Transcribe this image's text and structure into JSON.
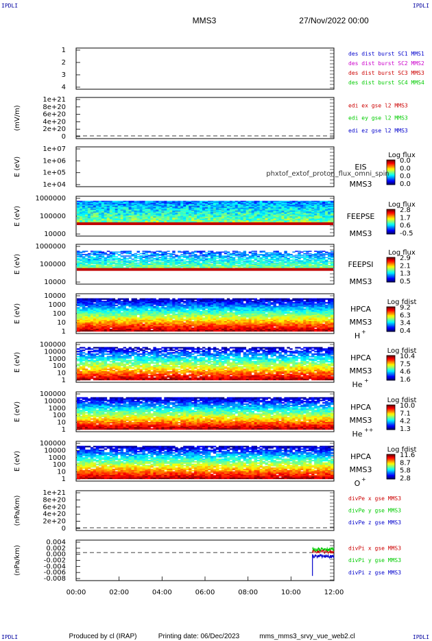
{
  "header": {
    "corner_label": "IPDLI",
    "spacecraft": "MMS3",
    "datetime": "27/Nov/2022 00:00"
  },
  "footer": {
    "produced_by": "Produced by cl (IRAP)",
    "printing_date": "Printing date: 06/Dec/2023",
    "script": "mms_mms3_srvy_vue_web2.cl"
  },
  "x_axis": {
    "ticks": [
      "00:00",
      "02:00",
      "04:00",
      "06:00",
      "08:00",
      "10:00",
      "12:00"
    ],
    "range_hours": [
      0,
      12
    ]
  },
  "colors": {
    "red": "#cc0000",
    "green": "#00cc00",
    "blue": "#0000cc",
    "magenta": "#cc00cc",
    "orange": "#cc6600",
    "dash": "#000000"
  },
  "chart_data": [
    {
      "type": "line",
      "panel": "burst",
      "yticks": [
        "1",
        "2",
        "3",
        "4"
      ],
      "ylim": [
        0.5,
        4.5
      ],
      "legend": [
        {
          "text": "des dist burst SC1 MMS1",
          "color": "#0000cc"
        },
        {
          "text": "des dist burst SC2 MMS2",
          "color": "#cc00cc"
        },
        {
          "text": "des dist burst SC3 MMS3",
          "color": "#cc0000"
        },
        {
          "text": "des dist burst SC4 MMS4",
          "color": "#00cc00"
        }
      ]
    },
    {
      "type": "line",
      "panel": "edi",
      "ylabel": "(mV/m)",
      "yticks": [
        "1e+21",
        "8e+20",
        "6e+20",
        "4e+20",
        "2e+20",
        "0"
      ],
      "legend": [
        {
          "text": "edi ex gse l2 MMS3",
          "color": "#cc0000"
        },
        {
          "text": "edi ey gse l2 MMS3",
          "color": "#00cc00"
        },
        {
          "text": "edi ez gse l2 MMS3",
          "color": "#0000cc"
        }
      ]
    },
    {
      "type": "heatmap",
      "panel": "eis",
      "ylabel": "E (eV)",
      "yticks": [
        "1e+07",
        "1e+06",
        "1e+05",
        "1e+04"
      ],
      "labels": [
        "EIS",
        "MMS3"
      ],
      "overlay_text": "phxtof_extof_proton_flux_omni_spin",
      "colorbar": {
        "title": "Log flux",
        "ticks": [
          "0.0",
          "0.0",
          "0.0",
          "0.0"
        ]
      }
    },
    {
      "type": "heatmap",
      "panel": "feepse",
      "ylabel": "E (eV)",
      "yticks": [
        "1000000",
        "100000",
        "10000"
      ],
      "labels": [
        "FEEPSE",
        "MMS3"
      ],
      "colorbar": {
        "title": "Log flux",
        "ticks": [
          "2.8",
          "1.7",
          "0.6",
          "-0.5"
        ]
      }
    },
    {
      "type": "heatmap",
      "panel": "feepsi",
      "ylabel": "E (eV)",
      "yticks": [
        "1000000",
        "100000",
        "10000"
      ],
      "labels": [
        "FEEPSI",
        "MMS3"
      ],
      "colorbar": {
        "title": "Log flux",
        "ticks": [
          "2.9",
          "2.1",
          "1.3",
          "0.5"
        ]
      }
    },
    {
      "type": "heatmap",
      "panel": "hpca-h",
      "ylabel": "E (eV)",
      "yticks": [
        "10000",
        "1000",
        "100",
        "10",
        "1"
      ],
      "labels": [
        "HPCA",
        "MMS3"
      ],
      "species": "H",
      "species_sup": "+",
      "colorbar": {
        "title": "Log fdist",
        "ticks": [
          "9.2",
          "6.3",
          "3.4",
          "0.4"
        ]
      }
    },
    {
      "type": "heatmap",
      "panel": "hpca-he",
      "ylabel": "E (eV)",
      "yticks": [
        "100000",
        "10000",
        "1000",
        "100",
        "10",
        "1"
      ],
      "labels": [
        "HPCA",
        "MMS3"
      ],
      "species": "He",
      "species_sup": "+",
      "colorbar": {
        "title": "Log fdist",
        "ticks": [
          "10.4",
          "7.5",
          "4.6",
          "1.6"
        ]
      }
    },
    {
      "type": "heatmap",
      "panel": "hpca-hepp",
      "ylabel": "E (eV)",
      "yticks": [
        "100000",
        "10000",
        "1000",
        "100",
        "10",
        "1"
      ],
      "labels": [
        "HPCA",
        "MMS3"
      ],
      "species": "He",
      "species_sup": "++",
      "colorbar": {
        "title": "Log fdist",
        "ticks": [
          "10.0",
          "7.1",
          "4.2",
          "1.3"
        ]
      }
    },
    {
      "type": "heatmap",
      "panel": "hpca-o",
      "ylabel": "E (eV)",
      "yticks": [
        "100000",
        "10000",
        "1000",
        "100",
        "10",
        "1"
      ],
      "labels": [
        "HPCA",
        "MMS3"
      ],
      "species": "O",
      "species_sup": "+",
      "colorbar": {
        "title": "Log fdist",
        "ticks": [
          "11.6",
          "8.7",
          "5.8",
          "2.8"
        ]
      }
    },
    {
      "type": "line",
      "panel": "divpe",
      "ylabel": "(nPa/km)",
      "yticks": [
        "1e+21",
        "8e+20",
        "6e+20",
        "4e+20",
        "2e+20",
        "0"
      ],
      "legend": [
        {
          "text": "divPe x gse MMS3",
          "color": "#cc0000"
        },
        {
          "text": "divPe y gse MMS3",
          "color": "#00cc00"
        },
        {
          "text": "divPe z gse MMS3",
          "color": "#0000cc"
        }
      ]
    },
    {
      "type": "line",
      "panel": "divpi",
      "ylabel": "(nPa/km)",
      "ylim": [
        -0.009,
        0.004
      ],
      "yticks": [
        "0.004",
        "0.002",
        "0.000",
        "-0.002",
        "-0.004",
        "-0.006",
        "-0.008"
      ],
      "data_window_hours": [
        11.0,
        12.0
      ],
      "series": [
        {
          "name": "divPi x gse MMS3",
          "color": "#cc0000"
        },
        {
          "name": "divPi y gse MMS3",
          "color": "#00cc00"
        },
        {
          "name": "divPi z gse MMS3",
          "color": "#0000cc"
        }
      ]
    }
  ]
}
